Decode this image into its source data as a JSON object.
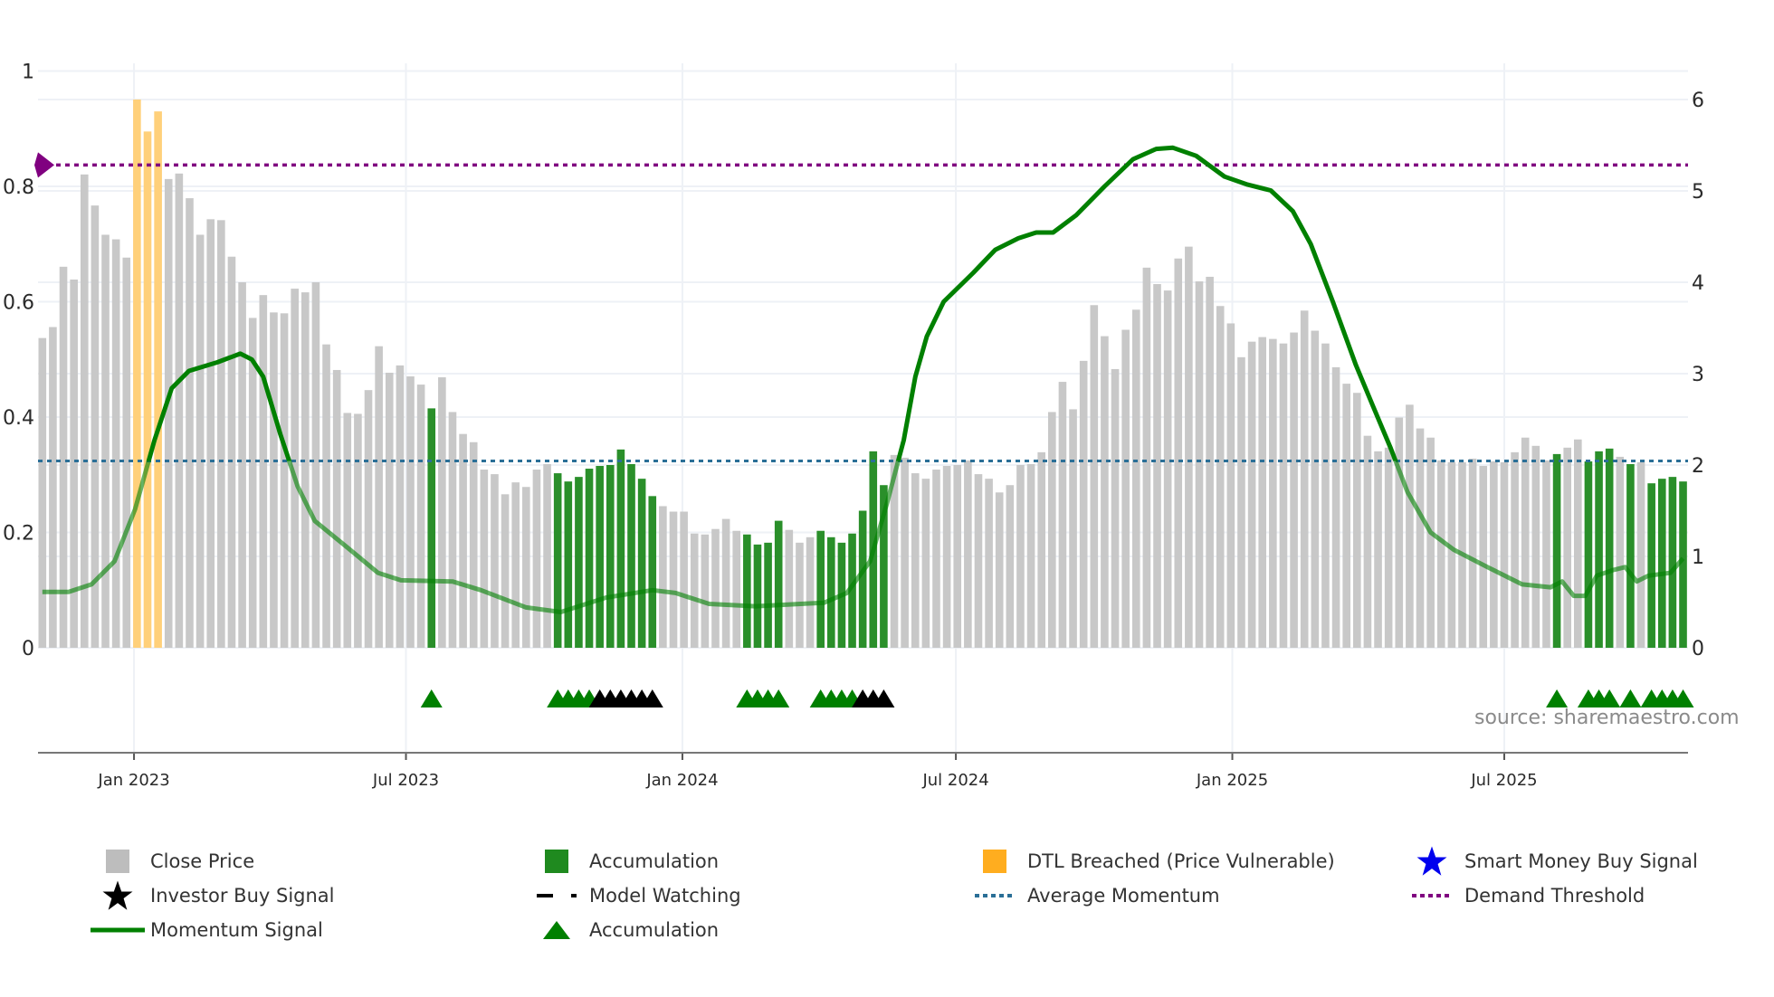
{
  "chart_data": {
    "type": "bar",
    "source": "source: sharemaestro.com",
    "x_start_date": "2022-11-01",
    "x_step_days": 7,
    "x_ticks": [
      {
        "label": "Jan 2023",
        "date": "2023-01-01"
      },
      {
        "label": "Jul 2023",
        "date": "2023-07-01"
      },
      {
        "label": "Jan 2024",
        "date": "2024-01-01"
      },
      {
        "label": "Jul 2024",
        "date": "2024-07-01"
      },
      {
        "label": "Jan 2025",
        "date": "2025-01-01"
      },
      {
        "label": "Jul 2025",
        "date": "2025-07-01"
      }
    ],
    "y_left": {
      "range": [
        0,
        1.0
      ],
      "ticks": [
        "0",
        "0.2",
        "0.4",
        "0.6",
        "0.8",
        "1"
      ],
      "tick_values": [
        0,
        0.2,
        0.4,
        0.6,
        0.8,
        1.0
      ]
    },
    "y_right": {
      "range": [
        0,
        6
      ],
      "ticks": [
        "0",
        "1",
        "2",
        "3",
        "4",
        "5",
        "6"
      ],
      "tick_values": [
        0,
        1,
        2,
        3,
        4,
        5,
        6
      ]
    },
    "close_price": [
      3.39,
      3.51,
      4.17,
      4.03,
      5.18,
      4.84,
      4.52,
      4.47,
      4.27,
      6.0,
      5.65,
      5.87,
      5.13,
      5.19,
      4.92,
      4.52,
      4.69,
      4.68,
      4.28,
      4.0,
      3.61,
      3.86,
      3.67,
      3.66,
      3.93,
      3.89,
      4.0,
      3.32,
      3.04,
      2.57,
      2.56,
      2.82,
      3.3,
      3.01,
      3.09,
      2.97,
      2.88,
      2.62,
      2.96,
      2.58,
      2.34,
      2.25,
      1.95,
      1.9,
      1.68,
      1.81,
      1.76,
      1.95,
      2.01,
      1.91,
      1.82,
      1.87,
      1.96,
      1.99,
      2.0,
      2.17,
      2.01,
      1.85,
      1.66,
      1.55,
      1.49,
      1.49,
      1.25,
      1.24,
      1.3,
      1.41,
      1.28,
      1.24,
      1.13,
      1.15,
      1.39,
      1.29,
      1.15,
      1.21,
      1.28,
      1.21,
      1.15,
      1.25,
      1.5,
      2.15,
      1.78,
      2.11,
      2.08,
      1.91,
      1.85,
      1.95,
      1.99,
      2.0,
      2.05,
      1.9,
      1.85,
      1.7,
      1.78,
      2.0,
      2.01,
      2.14,
      2.58,
      2.91,
      2.61,
      3.14,
      3.75,
      3.41,
      3.05,
      3.48,
      3.7,
      4.16,
      3.98,
      3.91,
      4.26,
      4.39,
      4.01,
      4.06,
      3.74,
      3.55,
      3.18,
      3.35,
      3.4,
      3.38,
      3.33,
      3.45,
      3.69,
      3.47,
      3.33,
      3.07,
      2.89,
      2.79,
      2.32,
      2.15,
      2.19,
      2.52,
      2.66,
      2.4,
      2.3,
      2.05,
      2.03,
      2.03,
      2.07,
      1.99,
      2.04,
      2.03,
      2.14,
      2.3,
      2.21,
      2.05,
      2.12,
      2.19,
      2.28,
      2.04,
      2.15,
      2.18,
      2.09,
      2.01,
      2.03,
      1.8,
      1.85,
      1.87,
      1.82
    ],
    "accumulation_weeks": [
      37,
      49,
      50,
      51,
      52,
      53,
      54,
      55,
      56,
      57,
      58,
      67,
      68,
      69,
      70,
      74,
      75,
      76,
      77,
      78,
      79,
      80,
      144,
      147,
      148,
      149,
      151,
      153,
      154,
      155,
      156
    ],
    "dtl_breached_weeks": [
      9,
      10,
      11
    ],
    "accumulation_markers_green": [
      37,
      49,
      50,
      51,
      52,
      67,
      68,
      69,
      70,
      74,
      75,
      76,
      77,
      144,
      147,
      148,
      149,
      151,
      153,
      154,
      155,
      156
    ],
    "accumulation_markers_black": [
      53,
      54,
      55,
      56,
      57,
      58,
      78,
      79,
      80
    ],
    "momentum_signal": [
      [
        0,
        0.097
      ],
      [
        2.5,
        0.097
      ],
      [
        4.68,
        0.11
      ],
      [
        6.86,
        0.15
      ],
      [
        8.81,
        0.24
      ],
      [
        10.66,
        0.36
      ],
      [
        12.3,
        0.45
      ],
      [
        13.93,
        0.48
      ],
      [
        16.65,
        0.495
      ],
      [
        18.82,
        0.51
      ],
      [
        19.91,
        0.5
      ],
      [
        21.0,
        0.47
      ],
      [
        22.63,
        0.37
      ],
      [
        24.27,
        0.28
      ],
      [
        25.9,
        0.22
      ],
      [
        28.6,
        0.18
      ],
      [
        31.9,
        0.13
      ],
      [
        34.1,
        0.117
      ],
      [
        39.0,
        0.115
      ],
      [
        41.7,
        0.1
      ],
      [
        46.0,
        0.07
      ],
      [
        49.3,
        0.062
      ],
      [
        53.6,
        0.087
      ],
      [
        58.0,
        0.1
      ],
      [
        60.2,
        0.095
      ],
      [
        63.4,
        0.076
      ],
      [
        67.8,
        0.072
      ],
      [
        72.1,
        0.076
      ],
      [
        74.3,
        0.078
      ],
      [
        76.5,
        0.095
      ],
      [
        78.7,
        0.15
      ],
      [
        80.3,
        0.25
      ],
      [
        81.9,
        0.36
      ],
      [
        83.0,
        0.47
      ],
      [
        84.1,
        0.54
      ],
      [
        85.7,
        0.6
      ],
      [
        88.5,
        0.65
      ],
      [
        90.6,
        0.69
      ],
      [
        92.8,
        0.71
      ],
      [
        94.5,
        0.72
      ],
      [
        96.1,
        0.72
      ],
      [
        98.3,
        0.75
      ],
      [
        101.0,
        0.8
      ],
      [
        103.7,
        0.847
      ],
      [
        105.9,
        0.865
      ],
      [
        107.5,
        0.867
      ],
      [
        109.7,
        0.853
      ],
      [
        112.4,
        0.817
      ],
      [
        114.6,
        0.803
      ],
      [
        116.8,
        0.793
      ],
      [
        118.9,
        0.757
      ],
      [
        120.6,
        0.7
      ],
      [
        122.7,
        0.6
      ],
      [
        124.9,
        0.49
      ],
      [
        126.5,
        0.42
      ],
      [
        128.2,
        0.346
      ],
      [
        129.8,
        0.27
      ],
      [
        132.0,
        0.2
      ],
      [
        134.2,
        0.17
      ],
      [
        137.4,
        0.14
      ],
      [
        140.7,
        0.11
      ],
      [
        143.4,
        0.105
      ],
      [
        144.5,
        0.115
      ],
      [
        145.6,
        0.09
      ],
      [
        146.7,
        0.09
      ],
      [
        147.8,
        0.125
      ],
      [
        149.4,
        0.135
      ],
      [
        150.5,
        0.14
      ],
      [
        151.6,
        0.115
      ],
      [
        152.7,
        0.125
      ],
      [
        154.8,
        0.13
      ],
      [
        156,
        0.155
      ]
    ],
    "average_momentum": 0.324,
    "demand_threshold": 0.837,
    "colors": {
      "close_price": "#c8c8c8",
      "accumulation": "#2a8f2a",
      "dtl_breached": "#ffd07a",
      "momentum": "#008000",
      "average_momentum": "#2a6f97",
      "demand_threshold": "#800080",
      "smart_money": "#0000ee",
      "investor": "#000000"
    }
  },
  "legend": [
    {
      "label": "Close Price",
      "icon": "gray-square-icon"
    },
    {
      "label": "Accumulation",
      "icon": "green-square-icon"
    },
    {
      "label": "DTL Breached (Price Vulnerable)",
      "icon": "orange-square-icon"
    },
    {
      "label": "Smart Money Buy Signal",
      "icon": "blue-star-icon"
    },
    {
      "label": "Investor Buy Signal",
      "icon": "black-star-icon"
    },
    {
      "label": "Model Watching",
      "icon": "black-dash-icon"
    },
    {
      "label": "Average Momentum",
      "icon": "blue-dotted-line-icon"
    },
    {
      "label": "Demand Threshold",
      "icon": "purple-dotted-line-icon"
    },
    {
      "label": "Momentum Signal",
      "icon": "green-line-icon"
    },
    {
      "label": "Accumulation",
      "icon": "green-triangle-icon"
    }
  ]
}
